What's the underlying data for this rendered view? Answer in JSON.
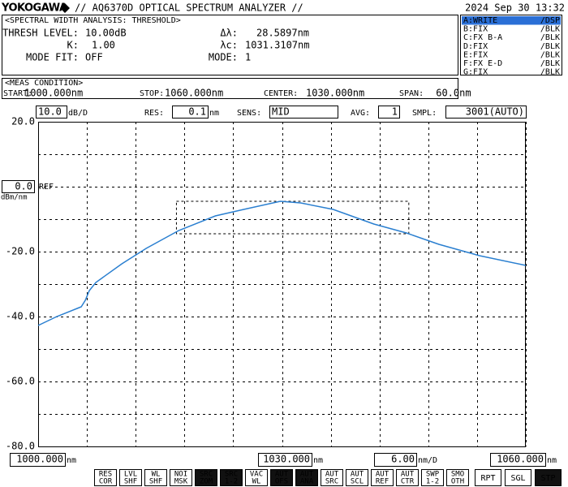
{
  "header": {
    "brand": "YOKOGAWA",
    "model": "// AQ6370D OPTICAL SPECTRUM ANALYZER //",
    "datetime": "2024 Sep 30 13:32"
  },
  "analysis": {
    "title": "<SPECTRAL WIDTH ANALYSIS: THRESHOLD>",
    "thresh_level": {
      "label": "THRESH LEVEL:",
      "value": 10,
      "value_label": "10.00dB"
    },
    "k": {
      "label": "K:",
      "value": 1,
      "value_label": "1.00"
    },
    "mode_fit": {
      "label": "MODE FIT:",
      "text": "OFF"
    },
    "delta_wl": {
      "label": "Δλ:",
      "value": 28.5897,
      "value_label": "28.5897nm"
    },
    "center_wl": {
      "label": "λc:",
      "value": 1031.3107,
      "value_label": "1031.3107nm"
    },
    "mode": {
      "label": "MODE:",
      "value": 1
    }
  },
  "traces": [
    {
      "name": "A:WRITE",
      "mode": "/DSP",
      "color": "#ffffff",
      "background": "#2a6fd6"
    },
    {
      "name": "B:FIX",
      "mode": "/BLK",
      "color": "#d02020"
    },
    {
      "name": "C:FX B-A",
      "mode": "/BLK",
      "color": "#2a9a2a"
    },
    {
      "name": "D:FIX",
      "mode": "/BLK",
      "color": "#8a3ab0"
    },
    {
      "name": "E:FIX",
      "mode": "/BLK",
      "color": "#20a8c8"
    },
    {
      "name": "F:FX E-D",
      "mode": "/BLK",
      "color": "#e05020"
    },
    {
      "name": "G:FIX",
      "mode": "/BLK",
      "color": "#208a8a"
    }
  ],
  "meas_condition": {
    "title": "<MEAS CONDITION>",
    "items": [
      {
        "label": "START:",
        "value": "1000.000nm"
      },
      {
        "label": "STOP:",
        "value": "1060.000nm"
      },
      {
        "label": "CENTER:",
        "value": "1030.000nm"
      },
      {
        "label": "SPAN:",
        "value": " 60.0nm"
      }
    ]
  },
  "settings": {
    "scale": "10.0",
    "scale_unit": "dB/D",
    "res_label": "RES:",
    "res": "0.1",
    "res_unit": "nm",
    "sens_label": "SENS:",
    "sens": "MID",
    "avg_label": "AVG:",
    "avg": "1",
    "smpl_label": "SMPL:",
    "smpl": "3001(AUTO)"
  },
  "chart_data": {
    "type": "line",
    "x": [
      1000,
      1002.3,
      1004.8,
      1005.3,
      1005.8,
      1006.3,
      1007.1,
      1010.3,
      1013.3,
      1017.3,
      1021.8,
      1025.3,
      1029.8,
      1032.3,
      1036.3,
      1041.3,
      1045.3,
      1049.3,
      1054.3,
      1060
    ],
    "values": [
      -42.75,
      -40,
      -37.5,
      -37,
      -35,
      -32,
      -29.5,
      -23.75,
      -19,
      -13.5,
      -9,
      -7,
      -4.5,
      -5,
      -7,
      -11.5,
      -14.25,
      -17.75,
      -21.25,
      -24.25
    ],
    "color": "#2a7fd0",
    "xlim": [
      1000,
      1060
    ],
    "ylim": [
      -80,
      20
    ],
    "xgrid": [
      1000,
      1006,
      1012,
      1018,
      1024,
      1030,
      1036,
      1042,
      1048,
      1054,
      1060
    ],
    "ygrid": [
      20,
      10,
      0,
      -10,
      -20,
      -30,
      -40,
      -50,
      -60,
      -70,
      -80
    ],
    "yticks": [
      {
        "value": 20,
        "label": "20.0"
      },
      {
        "value": -20,
        "label": "-20.0"
      },
      {
        "value": -40,
        "label": "-40.0"
      },
      {
        "value": -60,
        "label": "-60.0"
      },
      {
        "value": -80,
        "label": "-80.0"
      }
    ],
    "ref_level": {
      "value": 0,
      "label": "0.0"
    },
    "ref_text": "REF",
    "y_unit": "dBm/nm",
    "xticks": [
      {
        "value": 1000,
        "label": "1000.000"
      },
      {
        "value": 1030,
        "label": "1030.000"
      },
      {
        "value": 1060,
        "label": "1060.000"
      }
    ],
    "x_unit": "nm",
    "x_per_div": "6.00",
    "x_per_div_unit": "nm/D",
    "grid": true
  },
  "softkeys": [
    {
      "lines": [
        "RES",
        "COR"
      ],
      "active": false
    },
    {
      "lines": [
        "LVL",
        "SHF"
      ],
      "active": false
    },
    {
      "lines": [
        "WL",
        "SHF"
      ],
      "active": false
    },
    {
      "lines": [
        "NOI",
        "MSK"
      ],
      "active": false
    },
    {
      "lines": [
        "SRC",
        "ZOM"
      ],
      "active": true
    },
    {
      "lines": [
        "SRC",
        "1-2"
      ],
      "active": true
    },
    {
      "lines": [
        "VAC",
        "WL"
      ],
      "active": false
    },
    {
      "lines": [
        "AUT",
        "OFS"
      ],
      "active": true
    },
    {
      "lines": [
        "AUT",
        "ANA"
      ],
      "active": true
    },
    {
      "lines": [
        "AUT",
        "SRC"
      ],
      "active": false
    },
    {
      "lines": [
        "AUT",
        "SCL"
      ],
      "active": false
    },
    {
      "lines": [
        "AUT",
        "REF"
      ],
      "active": false
    },
    {
      "lines": [
        "AUT",
        "CTR"
      ],
      "active": false
    },
    {
      "lines": [
        "SWP",
        "1-2"
      ],
      "active": false
    },
    {
      "lines": [
        "SMO",
        "OTH"
      ],
      "active": false
    }
  ],
  "run_keys": [
    {
      "label": "RPT",
      "active": false
    },
    {
      "label": "SGL",
      "active": false
    },
    {
      "label": "STP",
      "active": true
    }
  ]
}
